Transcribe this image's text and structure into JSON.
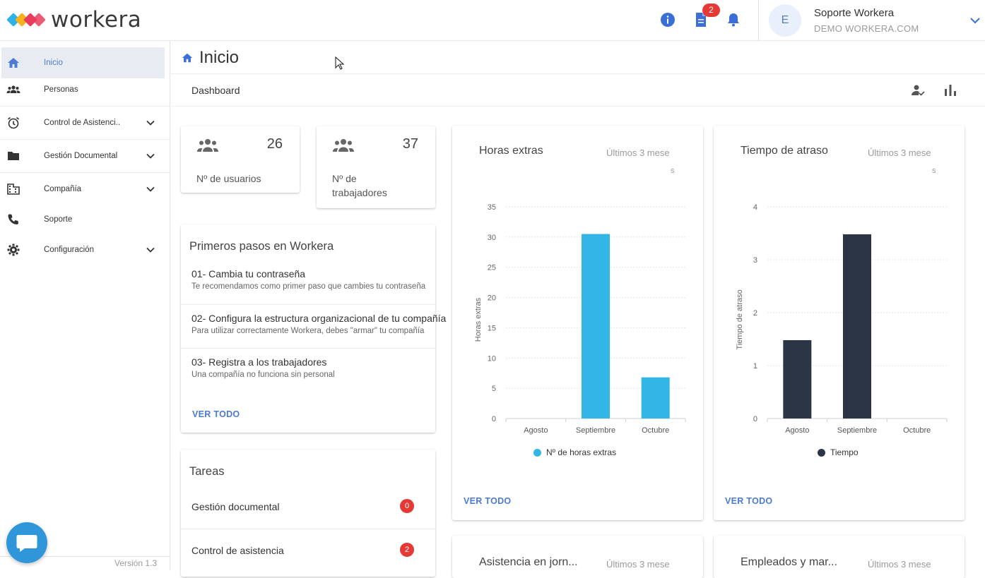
{
  "header": {
    "logo_text": "workera",
    "notification_count": "2",
    "user": {
      "initial": "E",
      "name": "Soporte Workera",
      "company": "DEMO WORKERA.COM"
    }
  },
  "sidebar": {
    "items": [
      {
        "label": "Inicio"
      },
      {
        "label": "Personas"
      },
      {
        "label": "Control de Asistenci.."
      },
      {
        "label": "Gestión Documental"
      },
      {
        "label": "Compañía"
      },
      {
        "label": "Soporte"
      },
      {
        "label": "Configuración"
      }
    ],
    "version": "Versión 1.3"
  },
  "main": {
    "title": "Inicio",
    "dashboard_label": "Dashboard",
    "stats": [
      {
        "value": "26",
        "label": "Nº de usuarios"
      },
      {
        "value": "37",
        "label": "Nº de trabajadores"
      }
    ],
    "first_steps": {
      "title": "Primeros pasos en Workera",
      "steps": [
        {
          "title": "01- Cambia tu contraseña",
          "desc": "Te recomendamos como primer paso que cambies tu contraseña"
        },
        {
          "title": "02- Configura la estructura organizacional de tu compañía",
          "desc": "Para utilizar correctamente Workera, debes \"armar\" tu compañía"
        },
        {
          "title": "03- Registra a los trabajadores",
          "desc": "Una compañía no funciona sin personal"
        }
      ],
      "link": "VER TODO"
    },
    "tasks": {
      "title": "Tareas",
      "items": [
        {
          "label": "Gestión documental",
          "count": "0"
        },
        {
          "label": "Control de asistencia",
          "count": "2"
        }
      ]
    },
    "bottom_cards": [
      {
        "title": "Asistencia en jorn...",
        "subtitle": "Últimos 3 mese"
      },
      {
        "title": "Empleados y mar...",
        "subtitle": "Últimos 3 mese"
      }
    ]
  },
  "colors": {
    "accent": "#4b7bd3",
    "badge": "#e53935",
    "bar_blue": "#33b5e5",
    "bar_dark": "#2b3545"
  },
  "chart_data": [
    {
      "type": "bar",
      "title": "Horas extras",
      "subtitle": "Últimos 3 mese",
      "subtitle_wrap": "s",
      "categories": [
        "Agosto",
        "Septiembre",
        "Octubre"
      ],
      "series": [
        {
          "name": "Nº de horas extras",
          "values": [
            0,
            30.5,
            6.8
          ],
          "color": "#33b5e5"
        }
      ],
      "ylabel": "Horas extras",
      "ylim": [
        0,
        35
      ],
      "yticks": [
        "0",
        "5",
        "10",
        "15",
        "20",
        "25",
        "30",
        "35"
      ],
      "grid": true,
      "legend": "bottom",
      "link": "VER TODO"
    },
    {
      "type": "bar",
      "title": "Tiempo de atraso",
      "subtitle": "Últimos 3 mese",
      "subtitle_wrap": "s",
      "categories": [
        "Agosto",
        "Septiembre",
        "Octubre"
      ],
      "series": [
        {
          "name": "Tiempo",
          "values": [
            1.48,
            3.48,
            0
          ],
          "color": "#2b3545"
        }
      ],
      "ylabel": "Tiempo de atraso",
      "ylim": [
        0,
        4
      ],
      "yticks": [
        "0",
        "1",
        "2",
        "3",
        "4"
      ],
      "grid": true,
      "legend": "bottom",
      "link": "VER TODO"
    }
  ]
}
